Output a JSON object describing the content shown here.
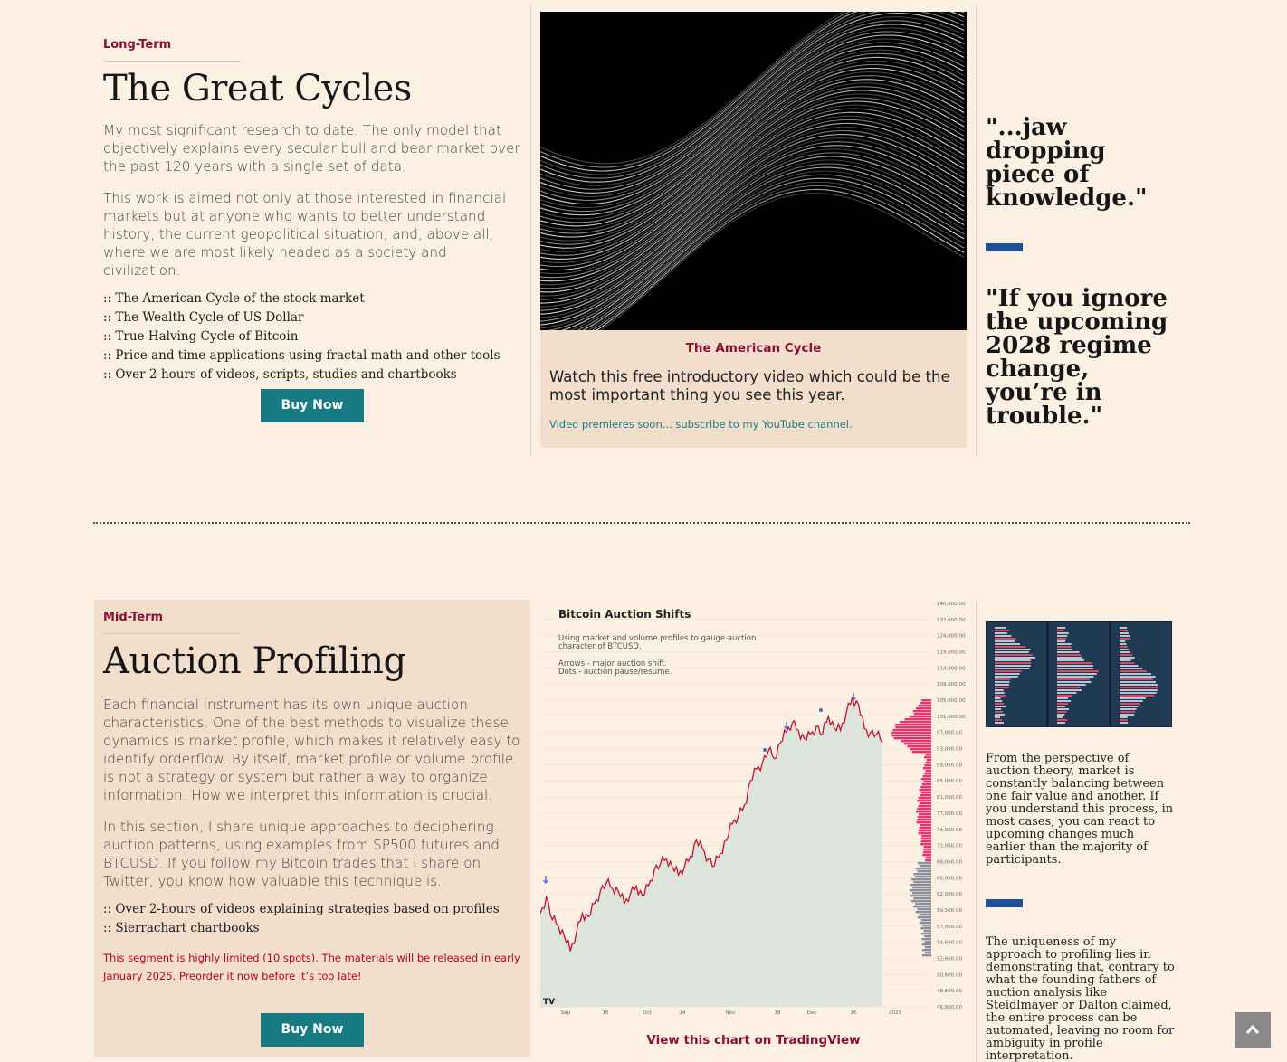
{
  "longterm": {
    "eyebrow": "Long-Term",
    "title": "The Great Cycles",
    "para1": "My most significant research to date. The only model that objectively explains every secular bull and bear market over the past 120 years with a single set of data.",
    "para2": "This work is aimed not only at those interested in financial markets but at anyone who wants to better understand history, the current geopolitical situation, and, above all, where we are most likely headed as a society and civilization.",
    "bullets": [
      ":: The American Cycle of the stock market",
      ":: The Wealth Cycle of US Dollar",
      ":: True Halving Cycle of Bitcoin",
      ":: Price and time applications using fractal math and other tools",
      ":: Over 2-hours of videos, scripts, studies and chartbooks"
    ],
    "buy_label": "Buy Now"
  },
  "video_card": {
    "title": "The American Cycle",
    "text": "Watch this free introductory video which could be the most important thing you see this year.",
    "link": "Video premieres soon... subscribe to my YouTube channel."
  },
  "quotes": {
    "quote1": "\"...jaw dropping piece of knowledge.\"",
    "quote2": "\"If you ignore the upcoming 2028 regime change, you’re in trouble.\""
  },
  "midterm": {
    "eyebrow": "Mid-Term",
    "title": "Auction Profiling",
    "para1": "Each financial instrument has its own unique auction characteristics. One of the best methods to visualize these dynamics is market profile, which makes it relatively easy to identify orderflow. By itself, market profile or volume profile is not a strategy or system but rather a way to organize information. How we interpret this information is crucial.",
    "para2": "In this section, I share unique approaches to deciphering auction patterns, using examples from SP500 futures and BTCUSD. If you follow my Bitcoin trades that I share on Twitter, you know how valuable this technique is.",
    "bullets": [
      ":: Over 2-hours of videos explaining strategies based on profiles",
      ":: Sierrachart chartbooks"
    ],
    "note": "This segment is highly limited (10 spots). The materials will be released in early January 2025. Preorder it now before it’s too late!",
    "buy_label": "Buy Now"
  },
  "chart_panel": {
    "title": "Bitcoin Auction Shifts",
    "desc1": "Using market and volume profiles to gauge auction",
    "desc2": "character of BTCUSD.",
    "desc3": "Arrows - major auction shift.",
    "desc4": "Dots - auction pause/resume.",
    "link": "View this chart on TradingView",
    "logo": "TV"
  },
  "chart_data": {
    "type": "line",
    "title": "Bitcoin Auction Shifts",
    "x_ticks": [
      "Sep",
      "16",
      "Oct",
      "14",
      "Nov",
      "18",
      "Dec",
      "16",
      "2025"
    ],
    "y_ticks": [
      "140,000.00",
      "132,000.00",
      "124,000.00",
      "119,000.00",
      "114,000.00",
      "109,000.00",
      "105,000.00",
      "101,000.00",
      "97,000.00",
      "93,000.00",
      "89,000.00",
      "85,000.00",
      "81,000.00",
      "77,000.00",
      "74,000.00",
      "71,000.00",
      "68,000.00",
      "65,000.00",
      "62,000.00",
      "59,500.00",
      "57,000.00",
      "54,600.00",
      "52,600.00",
      "50,600.00",
      "48,600.00",
      "46,800.00"
    ],
    "series": [
      {
        "values": [
          59000,
          61500,
          58000,
          57000,
          55500,
          53500,
          56000,
          59000,
          58500,
          60500,
          62500,
          64000,
          63000,
          62500,
          60500,
          62000,
          63500,
          61800,
          63500,
          66500,
          67500,
          68500,
          67000,
          65500,
          67000,
          69000,
          72000,
          70500,
          68500,
          67200,
          69500,
          72000,
          75000,
          76500,
          79000,
          85000,
          88000,
          89500,
          92500,
          90500,
          94500,
          97000,
          99500,
          97500,
          95500,
          96500,
          98500,
          96500,
          101000,
          98000,
          97500,
          102000,
          105500,
          104000,
          98000,
          97000,
          96500,
          94500
        ]
      }
    ],
    "ylim": [
      46800,
      140000
    ]
  },
  "side_text": {
    "para1": "From the perspective of auction theory, market is constantly balancing between one fair value and another. If you understand this process, in most cases, you can react to upcoming changes much earlier than the majority of participants.",
    "para2": "The uniqueness of my approach to profiling lies in demonstrating that, contrary to what the founding fathers of auction analysis like Steidlmayer or Dalton claimed, the entire process can be automated, leaving no room for ambiguity in profile interpretation."
  },
  "colors": {
    "accent": "#8a1036",
    "teal": "#177b84",
    "blue_bar": "#1c4f93",
    "background": "#fcf0e3",
    "card": "#f1dfcc"
  }
}
